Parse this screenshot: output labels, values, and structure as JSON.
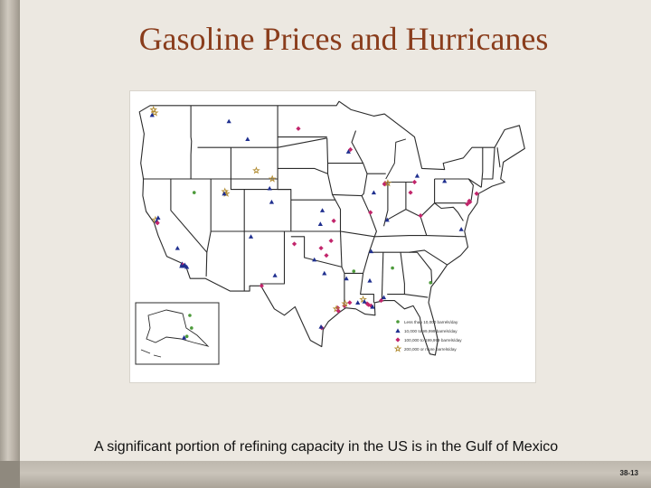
{
  "slide": {
    "title": "Gasoline Prices and Hurricanes",
    "caption": "A significant portion of refining capacity in the US is in the Gulf of Mexico",
    "slide_number": "38-13"
  },
  "colors": {
    "title": "#8a3d1c",
    "capacity_small": "#4c9a3a",
    "capacity_medium": "#1f2f8f",
    "capacity_large": "#c2256b",
    "capacity_largest": "#b08a2e"
  },
  "map": {
    "subject": "U.S. petroleum refinery locations by capacity",
    "legend": [
      {
        "label": "Less than 10,000 barrels/day",
        "marker": "circle",
        "color_key": "capacity_small"
      },
      {
        "label": "10,000 to 99,999 barrels/day",
        "marker": "triangle",
        "color_key": "capacity_medium"
      },
      {
        "label": "100,000 to 199,999 barrels/day",
        "marker": "diamond",
        "color_key": "capacity_large"
      },
      {
        "label": "200,000 or more barrels/day",
        "marker": "star",
        "color_key": "capacity_largest"
      }
    ],
    "refineries": [
      {
        "region": "Washington",
        "lon": -122.6,
        "lat": 48.6,
        "category": "capacity_largest"
      },
      {
        "region": "Washington",
        "lon": -122.4,
        "lat": 48.3,
        "category": "capacity_largest"
      },
      {
        "region": "Washington",
        "lon": -122.8,
        "lat": 48.1,
        "category": "capacity_medium"
      },
      {
        "region": "California North",
        "lon": -122.3,
        "lat": 38.1,
        "category": "capacity_largest"
      },
      {
        "region": "California North",
        "lon": -122.1,
        "lat": 38.0,
        "category": "capacity_medium"
      },
      {
        "region": "California North",
        "lon": -122.0,
        "lat": 37.8,
        "category": "capacity_large"
      },
      {
        "region": "California North",
        "lon": -121.9,
        "lat": 38.3,
        "category": "capacity_medium"
      },
      {
        "region": "California Central",
        "lon": -119.0,
        "lat": 35.4,
        "category": "capacity_medium"
      },
      {
        "region": "California South",
        "lon": -118.3,
        "lat": 33.9,
        "category": "capacity_medium"
      },
      {
        "region": "California South",
        "lon": -118.2,
        "lat": 33.8,
        "category": "capacity_large"
      },
      {
        "region": "California South",
        "lon": -118.1,
        "lat": 33.7,
        "category": "capacity_medium"
      },
      {
        "region": "California South",
        "lon": -117.9,
        "lat": 33.8,
        "category": "capacity_medium"
      },
      {
        "region": "California South",
        "lon": -118.4,
        "lat": 33.7,
        "category": "capacity_medium"
      },
      {
        "region": "California South",
        "lon": -117.6,
        "lat": 33.6,
        "category": "capacity_medium"
      },
      {
        "region": "Utah",
        "lon": -111.9,
        "lat": 40.8,
        "category": "capacity_largest"
      },
      {
        "region": "Utah",
        "lon": -111.7,
        "lat": 40.6,
        "category": "capacity_largest"
      },
      {
        "region": "Utah",
        "lon": -112.0,
        "lat": 40.6,
        "category": "capacity_medium"
      },
      {
        "region": "Nevada",
        "lon": -116.5,
        "lat": 40.7,
        "category": "capacity_small"
      },
      {
        "region": "Montana",
        "lon": -108.5,
        "lat": 45.8,
        "category": "capacity_medium"
      },
      {
        "region": "Montana",
        "lon": -111.3,
        "lat": 47.5,
        "category": "capacity_medium"
      },
      {
        "region": "Wyoming",
        "lon": -107.2,
        "lat": 42.8,
        "category": "capacity_largest"
      },
      {
        "region": "Wyoming",
        "lon": -105.2,
        "lat": 41.1,
        "category": "capacity_medium"
      },
      {
        "region": "Wyoming",
        "lon": -104.8,
        "lat": 42.0,
        "category": "capacity_largest"
      },
      {
        "region": "Colorado",
        "lon": -104.9,
        "lat": 39.8,
        "category": "capacity_medium"
      },
      {
        "region": "North Dakota",
        "lon": -100.9,
        "lat": 46.8,
        "category": "capacity_large"
      },
      {
        "region": "Minnesota",
        "lon": -93.1,
        "lat": 44.8,
        "category": "capacity_large"
      },
      {
        "region": "Minnesota",
        "lon": -93.4,
        "lat": 44.6,
        "category": "capacity_medium"
      },
      {
        "region": "Kansas",
        "lon": -97.6,
        "lat": 37.7,
        "category": "capacity_medium"
      },
      {
        "region": "Kansas",
        "lon": -95.6,
        "lat": 38.0,
        "category": "capacity_large"
      },
      {
        "region": "Kansas",
        "lon": -97.3,
        "lat": 39.0,
        "category": "capacity_medium"
      },
      {
        "region": "Oklahoma",
        "lon": -96.0,
        "lat": 36.1,
        "category": "capacity_large"
      },
      {
        "region": "Oklahoma",
        "lon": -97.5,
        "lat": 35.4,
        "category": "capacity_large"
      },
      {
        "region": "Oklahoma",
        "lon": -98.5,
        "lat": 34.3,
        "category": "capacity_medium"
      },
      {
        "region": "Oklahoma",
        "lon": -96.7,
        "lat": 34.7,
        "category": "capacity_large"
      },
      {
        "region": "New Mexico",
        "lon": -104.4,
        "lat": 32.8,
        "category": "capacity_medium"
      },
      {
        "region": "New Mexico",
        "lon": -108.0,
        "lat": 36.5,
        "category": "capacity_medium"
      },
      {
        "region": "Texas West",
        "lon": -106.4,
        "lat": 31.8,
        "category": "capacity_large"
      },
      {
        "region": "Texas Panhandle",
        "lon": -101.5,
        "lat": 35.8,
        "category": "capacity_large"
      },
      {
        "region": "Texas North",
        "lon": -97.0,
        "lat": 33.0,
        "category": "capacity_medium"
      },
      {
        "region": "Texas Gulf",
        "lon": -95.0,
        "lat": 29.7,
        "category": "capacity_large"
      },
      {
        "region": "Texas Gulf",
        "lon": -95.2,
        "lat": 29.6,
        "category": "capacity_largest"
      },
      {
        "region": "Texas Gulf",
        "lon": -94.9,
        "lat": 29.4,
        "category": "capacity_large"
      },
      {
        "region": "Texas Gulf",
        "lon": -94.0,
        "lat": 29.9,
        "category": "capacity_large"
      },
      {
        "region": "Texas Gulf",
        "lon": -93.9,
        "lat": 30.1,
        "category": "capacity_largest"
      },
      {
        "region": "Texas Gulf",
        "lon": -97.4,
        "lat": 27.8,
        "category": "capacity_large"
      },
      {
        "region": "Texas Gulf",
        "lon": -97.5,
        "lat": 27.9,
        "category": "capacity_medium"
      },
      {
        "region": "Louisiana",
        "lon": -93.2,
        "lat": 30.2,
        "category": "capacity_large"
      },
      {
        "region": "Louisiana",
        "lon": -91.2,
        "lat": 30.5,
        "category": "capacity_largest"
      },
      {
        "region": "Louisiana",
        "lon": -90.4,
        "lat": 30.0,
        "category": "capacity_large"
      },
      {
        "region": "Louisiana",
        "lon": -90.0,
        "lat": 29.9,
        "category": "capacity_large"
      },
      {
        "region": "Louisiana",
        "lon": -89.8,
        "lat": 29.8,
        "category": "capacity_medium"
      },
      {
        "region": "Louisiana",
        "lon": -90.6,
        "lat": 30.1,
        "category": "capacity_large"
      },
      {
        "region": "Louisiana",
        "lon": -91.0,
        "lat": 30.3,
        "category": "capacity_medium"
      },
      {
        "region": "Louisiana",
        "lon": -92.0,
        "lat": 30.2,
        "category": "capacity_medium"
      },
      {
        "region": "Louisiana",
        "lon": -93.7,
        "lat": 32.5,
        "category": "capacity_medium"
      },
      {
        "region": "Mississippi",
        "lon": -88.5,
        "lat": 30.4,
        "category": "capacity_large"
      },
      {
        "region": "Mississippi",
        "lon": -90.2,
        "lat": 32.3,
        "category": "capacity_medium"
      },
      {
        "region": "Alabama",
        "lon": -88.1,
        "lat": 30.7,
        "category": "capacity_medium"
      },
      {
        "region": "Alabama",
        "lon": -86.8,
        "lat": 33.5,
        "category": "capacity_small"
      },
      {
        "region": "Arkansas",
        "lon": -92.6,
        "lat": 33.2,
        "category": "capacity_small"
      },
      {
        "region": "Tennessee",
        "lon": -90.0,
        "lat": 35.1,
        "category": "capacity_medium"
      },
      {
        "region": "Georgia",
        "lon": -81.1,
        "lat": 32.1,
        "category": "capacity_small"
      },
      {
        "region": "Illinois",
        "lon": -87.9,
        "lat": 41.6,
        "category": "capacity_large"
      },
      {
        "region": "Illinois",
        "lon": -90.1,
        "lat": 38.8,
        "category": "capacity_large"
      },
      {
        "region": "Illinois",
        "lon": -89.6,
        "lat": 40.7,
        "category": "capacity_medium"
      },
      {
        "region": "Illinois",
        "lon": -88.0,
        "lat": 41.5,
        "category": "capacity_large"
      },
      {
        "region": "Indiana",
        "lon": -87.5,
        "lat": 41.6,
        "category": "capacity_largest"
      },
      {
        "region": "Indiana",
        "lon": -87.6,
        "lat": 38.1,
        "category": "capacity_medium"
      },
      {
        "region": "Ohio",
        "lon": -83.5,
        "lat": 41.7,
        "category": "capacity_large"
      },
      {
        "region": "Ohio",
        "lon": -84.1,
        "lat": 40.7,
        "category": "capacity_large"
      },
      {
        "region": "Michigan",
        "lon": -83.1,
        "lat": 42.3,
        "category": "capacity_medium"
      },
      {
        "region": "Kentucky",
        "lon": -82.6,
        "lat": 38.5,
        "category": "capacity_large"
      },
      {
        "region": "Pennsylvania",
        "lon": -75.3,
        "lat": 39.9,
        "category": "capacity_large"
      },
      {
        "region": "Pennsylvania",
        "lon": -79.0,
        "lat": 41.8,
        "category": "capacity_medium"
      },
      {
        "region": "New Jersey",
        "lon": -74.2,
        "lat": 40.6,
        "category": "capacity_large"
      },
      {
        "region": "New Jersey",
        "lon": -75.2,
        "lat": 39.8,
        "category": "capacity_large"
      },
      {
        "region": "Delaware",
        "lon": -75.6,
        "lat": 39.6,
        "category": "capacity_large"
      },
      {
        "region": "Virginia",
        "lon": -76.5,
        "lat": 37.2,
        "category": "capacity_medium"
      },
      {
        "region": "Alaska",
        "lon": -149.9,
        "lat": 61.2,
        "category": "capacity_small"
      },
      {
        "region": "Alaska",
        "lon": -151.2,
        "lat": 60.7,
        "category": "capacity_medium"
      },
      {
        "region": "Alaska",
        "lon": -147.7,
        "lat": 64.8,
        "category": "capacity_small"
      },
      {
        "region": "Alaska",
        "lon": -148.5,
        "lat": 70.2,
        "category": "capacity_small"
      }
    ]
  }
}
